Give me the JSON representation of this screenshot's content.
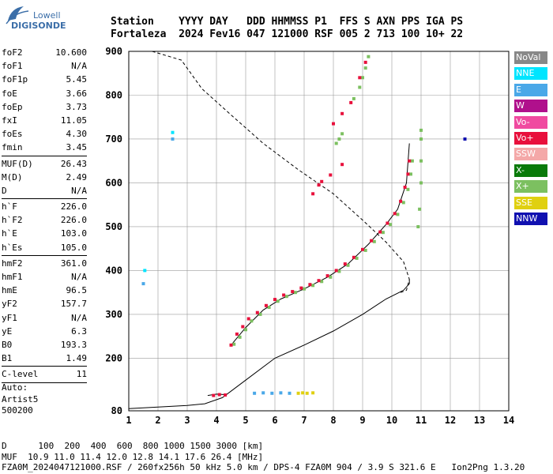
{
  "logo": {
    "line1": "Lowell",
    "line2": "DIGISONDE"
  },
  "header": {
    "line1": "Station    YYYY DAY   DDD HHMMSS P1  FFS S AXN PPS IGA PS",
    "line2": "Fortaleza  2024 Fev16 047 121000 RSF 005 2 713 100 10+ 22"
  },
  "params": {
    "group1": [
      {
        "name": "foF2",
        "value": "10.600"
      },
      {
        "name": "foF1",
        "value": "N/A"
      },
      {
        "name": "foF1p",
        "value": "5.45"
      },
      {
        "name": "foE",
        "value": "3.66"
      },
      {
        "name": "foEp",
        "value": "3.73"
      },
      {
        "name": "fxI",
        "value": "11.05"
      },
      {
        "name": "foEs",
        "value": "4.30"
      },
      {
        "name": "fmin",
        "value": "3.45"
      }
    ],
    "group2": [
      {
        "name": "MUF(D)",
        "value": "26.43"
      },
      {
        "name": "M(D)",
        "value": "2.49"
      },
      {
        "name": "D",
        "value": "N/A"
      }
    ],
    "group3": [
      {
        "name": "h`F",
        "value": "226.0"
      },
      {
        "name": "h`F2",
        "value": "226.0"
      },
      {
        "name": "h`E",
        "value": "103.0"
      },
      {
        "name": "h`Es",
        "value": "105.0"
      }
    ],
    "group4": [
      {
        "name": "hmF2",
        "value": "361.0"
      },
      {
        "name": "hmF1",
        "value": "N/A"
      },
      {
        "name": "hmE",
        "value": "96.5"
      },
      {
        "name": "yF2",
        "value": "157.7"
      },
      {
        "name": "yF1",
        "value": "N/A"
      },
      {
        "name": "yE",
        "value": "6.3"
      },
      {
        "name": "B0",
        "value": "193.3"
      },
      {
        "name": "B1",
        "value": "1.49"
      }
    ],
    "group5": [
      {
        "name": "C-level",
        "value": "11"
      }
    ]
  },
  "auto": {
    "line1": "Auto:",
    "line2": "Artist5",
    "line3": "500200"
  },
  "legend": [
    {
      "label": "NoVal",
      "bg": "#888888",
      "fg": "#ffffff"
    },
    {
      "label": "NNE",
      "bg": "#00e5ff",
      "fg": "#ffffff"
    },
    {
      "label": "E",
      "bg": "#4aa8e8",
      "fg": "#ffffff"
    },
    {
      "label": "W",
      "bg": "#b0108c",
      "fg": "#ffffff"
    },
    {
      "label": "Vo-",
      "bg": "#f04aa0",
      "fg": "#ffffff"
    },
    {
      "label": "Vo+",
      "bg": "#e8103c",
      "fg": "#ffffff"
    },
    {
      "label": "SSW",
      "bg": "#f4a8a8",
      "fg": "#ffffff"
    },
    {
      "label": "X-",
      "bg": "#0a7a0a",
      "fg": "#ffffff"
    },
    {
      "label": "X+",
      "bg": "#7cc060",
      "fg": "#ffffff"
    },
    {
      "label": "SSE",
      "bg": "#e0d010",
      "fg": "#ffffff"
    },
    {
      "label": "NNW",
      "bg": "#1010b0",
      "fg": "#ffffff"
    }
  ],
  "footer": {
    "line1": "D      100  200  400  600  800 1000 1500 3000 [km]",
    "line2": "MUF  10.9 11.0 11.4 12.0 12.8 14.1 17.6 26.4 [MHz]",
    "line3": "FZA0M_2024047121000.RSF / 260fx256h 50 kHz 5.0 km / DPS-4 FZA0M 904 / 3.9 S 321.6 E   Ion2Png 1.3.20"
  },
  "chart_data": {
    "type": "scatter",
    "title": "",
    "xlabel": "",
    "ylabel": "",
    "xlim": [
      1,
      14
    ],
    "ylim": [
      80,
      900
    ],
    "x_ticks": [
      1,
      2,
      3,
      4,
      5,
      6,
      7,
      8,
      9,
      10,
      11,
      12,
      13,
      14
    ],
    "y_ticks": [
      80,
      200,
      300,
      400,
      500,
      600,
      700,
      800,
      900
    ],
    "grid": true,
    "series": [
      {
        "name": "X+",
        "color": "#7cc060",
        "points": [
          [
            4.6,
            232
          ],
          [
            4.8,
            248
          ],
          [
            5.0,
            265
          ],
          [
            5.2,
            285
          ],
          [
            5.5,
            300
          ],
          [
            5.8,
            316
          ],
          [
            6.1,
            330
          ],
          [
            6.4,
            341
          ],
          [
            6.7,
            350
          ],
          [
            7.0,
            358
          ],
          [
            7.3,
            366
          ],
          [
            7.6,
            375
          ],
          [
            7.9,
            385
          ],
          [
            8.2,
            398
          ],
          [
            8.5,
            412
          ],
          [
            8.8,
            428
          ],
          [
            9.1,
            446
          ],
          [
            9.4,
            466
          ],
          [
            9.7,
            487
          ],
          [
            9.95,
            505
          ],
          [
            10.2,
            528
          ],
          [
            10.4,
            555
          ],
          [
            10.55,
            585
          ],
          [
            10.65,
            620
          ],
          [
            10.7,
            650
          ],
          [
            10.9,
            500
          ],
          [
            10.95,
            540
          ],
          [
            11.0,
            600
          ],
          [
            11.0,
            650
          ],
          [
            11.0,
            700
          ],
          [
            11.0,
            720
          ],
          [
            8.1,
            690
          ],
          [
            8.2,
            700
          ],
          [
            8.3,
            712
          ],
          [
            8.7,
            792
          ],
          [
            8.9,
            818
          ],
          [
            9.0,
            840
          ],
          [
            9.1,
            862
          ],
          [
            9.2,
            888
          ]
        ]
      },
      {
        "name": "Vo+",
        "color": "#e8103c",
        "points": [
          [
            4.5,
            230
          ],
          [
            4.7,
            255
          ],
          [
            4.9,
            272
          ],
          [
            5.1,
            290
          ],
          [
            5.4,
            304
          ],
          [
            5.7,
            320
          ],
          [
            6.0,
            334
          ],
          [
            6.3,
            344
          ],
          [
            6.6,
            352
          ],
          [
            6.9,
            360
          ],
          [
            7.2,
            368
          ],
          [
            7.5,
            377
          ],
          [
            7.8,
            388
          ],
          [
            8.1,
            400
          ],
          [
            8.4,
            415
          ],
          [
            8.7,
            430
          ],
          [
            9.0,
            448
          ],
          [
            9.3,
            468
          ],
          [
            9.6,
            488
          ],
          [
            9.85,
            508
          ],
          [
            10.1,
            530
          ],
          [
            10.3,
            558
          ],
          [
            10.45,
            590
          ],
          [
            10.55,
            620
          ],
          [
            10.6,
            650
          ],
          [
            7.3,
            575
          ],
          [
            7.5,
            595
          ],
          [
            7.6,
            603
          ],
          [
            7.9,
            618
          ],
          [
            8.3,
            642
          ],
          [
            8.0,
            735
          ],
          [
            8.3,
            758
          ],
          [
            8.6,
            783
          ],
          [
            8.9,
            840
          ],
          [
            9.1,
            875
          ],
          [
            3.9,
            115
          ],
          [
            4.1,
            117
          ],
          [
            4.3,
            116
          ]
        ]
      },
      {
        "name": "E",
        "color": "#4aa8e8",
        "points": [
          [
            5.3,
            120
          ],
          [
            5.6,
            121
          ],
          [
            5.9,
            120
          ],
          [
            6.2,
            121
          ],
          [
            6.5,
            120
          ],
          [
            2.5,
            700
          ],
          [
            1.5,
            370
          ]
        ]
      },
      {
        "name": "NNE",
        "color": "#00e5ff",
        "points": [
          [
            2.5,
            715
          ],
          [
            1.55,
            400
          ]
        ]
      },
      {
        "name": "SSE",
        "color": "#e0d010",
        "points": [
          [
            6.8,
            120
          ],
          [
            6.95,
            121
          ],
          [
            7.1,
            120
          ],
          [
            7.3,
            121
          ]
        ]
      },
      {
        "name": "NNW",
        "color": "#1010b0",
        "points": [
          [
            12.5,
            700
          ]
        ]
      }
    ],
    "curves": [
      {
        "name": "profile",
        "style": "solid",
        "points": [
          [
            1,
            85
          ],
          [
            3,
            92
          ],
          [
            3.6,
            96
          ],
          [
            4.2,
            110
          ],
          [
            5.0,
            150
          ],
          [
            6.0,
            200
          ],
          [
            7.0,
            230
          ],
          [
            8.0,
            262
          ],
          [
            9.0,
            300
          ],
          [
            9.8,
            335
          ],
          [
            10.4,
            355
          ],
          [
            10.6,
            370
          ],
          [
            10.6,
            380
          ]
        ]
      },
      {
        "name": "trace_fit",
        "style": "solid",
        "points": [
          [
            4.5,
            230
          ],
          [
            5.0,
            270
          ],
          [
            5.6,
            310
          ],
          [
            6.2,
            335
          ],
          [
            7.0,
            358
          ],
          [
            7.8,
            385
          ],
          [
            8.5,
            415
          ],
          [
            9.2,
            460
          ],
          [
            9.8,
            505
          ],
          [
            10.2,
            540
          ],
          [
            10.5,
            600
          ],
          [
            10.6,
            690
          ]
        ]
      },
      {
        "name": "muf_curve",
        "style": "dashed",
        "points": [
          [
            1.8,
            900
          ],
          [
            2.8,
            880
          ],
          [
            3.5,
            815
          ],
          [
            4.5,
            755
          ],
          [
            5.6,
            690
          ],
          [
            6.8,
            630
          ],
          [
            8.0,
            575
          ],
          [
            9.0,
            515
          ],
          [
            9.8,
            465
          ],
          [
            10.4,
            420
          ],
          [
            10.6,
            380
          ],
          [
            10.5,
            355
          ],
          [
            10.3,
            350
          ]
        ]
      },
      {
        "name": "es_trace",
        "style": "solid",
        "points": [
          [
            3.7,
            115
          ],
          [
            4.0,
            118
          ],
          [
            4.3,
            117
          ]
        ]
      }
    ]
  }
}
